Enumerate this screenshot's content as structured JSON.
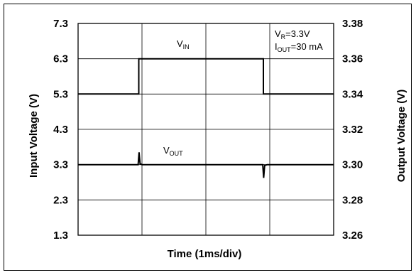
{
  "chart_data": {
    "type": "line",
    "title": "",
    "xlabel": "Time (1ms/div)",
    "ylabel_left": "Input Voltage (V)",
    "ylabel_right": "Output Voltage (V)",
    "x_divisions": 4,
    "xlim": [
      0,
      4
    ],
    "ylim_left": [
      1.3,
      7.3
    ],
    "ylim_right": [
      3.26,
      3.38
    ],
    "left_ticks": [
      "7.3",
      "6.3",
      "5.3",
      "4.3",
      "3.3",
      "2.3",
      "1.3"
    ],
    "right_ticks": [
      "3.38",
      "3.36",
      "3.34",
      "3.32",
      "3.30",
      "3.28",
      "3.26"
    ],
    "grid": true,
    "annotation": {
      "line1_main": "V",
      "line1_sub": "R",
      "line1_rest": "=3.3V",
      "line2_main": "I",
      "line2_sub": "OUT",
      "line2_rest": "=30 mA"
    },
    "series": [
      {
        "name_main": "V",
        "name_sub": "IN",
        "axis": "left",
        "points": [
          [
            0,
            5.3
          ],
          [
            0.95,
            5.3
          ],
          [
            0.95,
            6.3
          ],
          [
            2.9,
            6.3
          ],
          [
            2.9,
            5.3
          ],
          [
            4,
            5.3
          ]
        ]
      },
      {
        "name_main": "V",
        "name_sub": "OUT",
        "axis": "right",
        "points": [
          [
            0,
            3.3
          ],
          [
            0.94,
            3.3
          ],
          [
            0.955,
            3.307
          ],
          [
            0.97,
            3.3005
          ],
          [
            1.0,
            3.3
          ],
          [
            2.89,
            3.3
          ],
          [
            2.905,
            3.2925
          ],
          [
            2.92,
            3.2995
          ],
          [
            2.96,
            3.3
          ],
          [
            4,
            3.3
          ]
        ]
      }
    ]
  }
}
